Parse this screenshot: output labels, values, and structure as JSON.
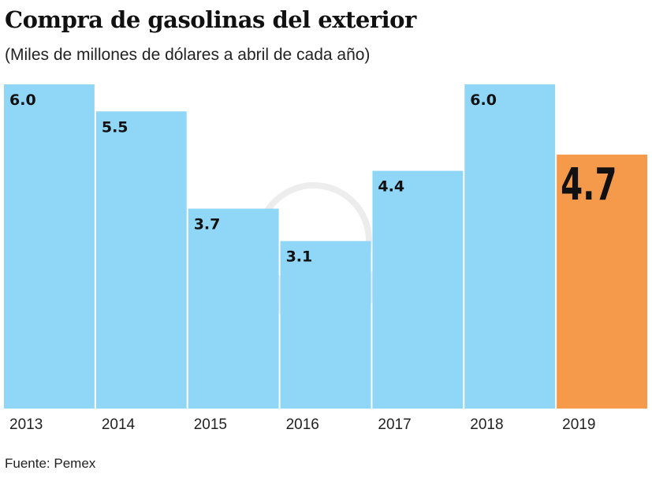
{
  "chart_data": {
    "type": "bar",
    "title": "Compra de gasolinas del exterior",
    "subtitle": "(Miles de millones de dólares a abril de cada año)",
    "categories": [
      "2013",
      "2014",
      "2015",
      "2016",
      "2017",
      "2018",
      "2019"
    ],
    "values": [
      6.0,
      5.5,
      3.7,
      3.1,
      4.4,
      6.0,
      4.7
    ],
    "labels": [
      "6.0",
      "5.5",
      "3.7",
      "3.1",
      "4.4",
      "6.0",
      "4.7"
    ],
    "highlight_index": 6,
    "ylim": [
      0,
      6.0
    ],
    "grid": false,
    "colors": {
      "bar": "#8fd6f7",
      "highlight": "#f59a4a",
      "label": "#111111"
    },
    "source": "Fuente: Pemex"
  }
}
